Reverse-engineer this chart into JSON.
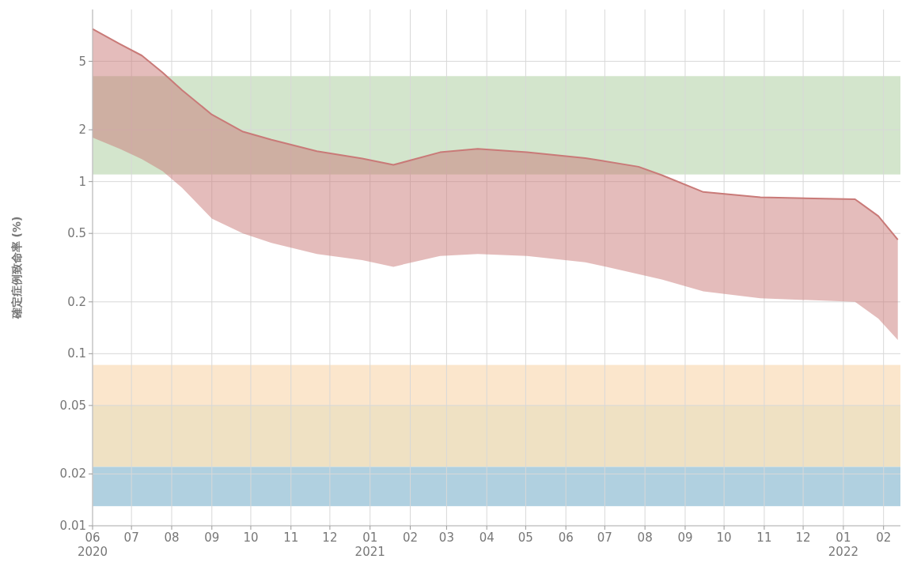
{
  "chart_data": {
    "type": "line",
    "ylabel": "確定症例致命率 (%)",
    "log": "y",
    "grid": true,
    "xlim": [
      "2020-06-01",
      "2022-02-14"
    ],
    "ylim": [
      0.01,
      10
    ],
    "yticks": [
      0.01,
      0.02,
      0.05,
      0.1,
      0.2,
      0.5,
      1,
      2,
      5
    ],
    "xticks": [
      {
        "value": "2020-06-01",
        "label": "06\n2020"
      },
      {
        "value": "2020-07-01",
        "label": "07"
      },
      {
        "value": "2020-08-01",
        "label": "08"
      },
      {
        "value": "2020-09-01",
        "label": "09"
      },
      {
        "value": "2020-10-01",
        "label": "10"
      },
      {
        "value": "2020-11-01",
        "label": "11"
      },
      {
        "value": "2020-12-01",
        "label": "12"
      },
      {
        "value": "2021-01-01",
        "label": "01\n2021"
      },
      {
        "value": "2021-02-01",
        "label": "02"
      },
      {
        "value": "2021-03-01",
        "label": "03"
      },
      {
        "value": "2021-04-01",
        "label": "04"
      },
      {
        "value": "2021-05-01",
        "label": "05"
      },
      {
        "value": "2021-06-01",
        "label": "06"
      },
      {
        "value": "2021-07-01",
        "label": "07"
      },
      {
        "value": "2021-08-01",
        "label": "08"
      },
      {
        "value": "2021-09-01",
        "label": "09"
      },
      {
        "value": "2021-10-01",
        "label": "10"
      },
      {
        "value": "2021-11-01",
        "label": "11"
      },
      {
        "value": "2021-12-01",
        "label": "12"
      },
      {
        "value": "2022-01-01",
        "label": "01\n2022"
      },
      {
        "value": "2022-02-01",
        "label": "02"
      }
    ],
    "x": [
      "2020-06-01",
      "2020-06-22",
      "2020-07-09",
      "2020-07-25",
      "2020-08-09",
      "2020-09-01",
      "2020-09-25",
      "2020-10-17",
      "2020-11-21",
      "2020-12-26",
      "2021-01-19",
      "2021-02-24",
      "2021-03-25",
      "2021-05-02",
      "2021-06-16",
      "2021-07-27",
      "2021-08-14",
      "2021-09-15",
      "2021-10-29",
      "2022-01-10",
      "2022-01-28",
      "2022-02-12"
    ],
    "series": [
      {
        "color": "#c97a78",
        "values": [
          7.7,
          6.3,
          5.4,
          4.3,
          3.4,
          2.45,
          1.95,
          1.75,
          1.5,
          1.36,
          1.25,
          1.48,
          1.55,
          1.48,
          1.37,
          1.22,
          1.09,
          0.87,
          0.81,
          0.79,
          0.63,
          0.46
        ],
        "upper": [
          7.7,
          6.3,
          5.4,
          4.3,
          3.4,
          2.45,
          1.95,
          1.75,
          1.5,
          1.36,
          1.25,
          1.48,
          1.55,
          1.48,
          1.37,
          1.22,
          1.09,
          0.87,
          0.81,
          0.79,
          0.63,
          0.46
        ],
        "lower": [
          1.8,
          1.55,
          1.35,
          1.15,
          0.92,
          0.61,
          0.5,
          0.44,
          0.38,
          0.35,
          0.32,
          0.37,
          0.38,
          0.37,
          0.34,
          0.29,
          0.27,
          0.23,
          0.21,
          0.2,
          0.16,
          0.12
        ]
      }
    ],
    "bands": [
      {
        "axis": "y",
        "from": 1.1,
        "to": 4.1,
        "color": "#d3e5cc"
      },
      {
        "axis": "y",
        "from": 0.05,
        "to": 0.086,
        "color": "#fbe6cc"
      },
      {
        "axis": "y",
        "from": 0.022,
        "to": 0.05,
        "color": "#efe1c3"
      },
      {
        "axis": "y",
        "from": 0.013,
        "to": 0.022,
        "color": "#b0d0e0"
      }
    ]
  }
}
